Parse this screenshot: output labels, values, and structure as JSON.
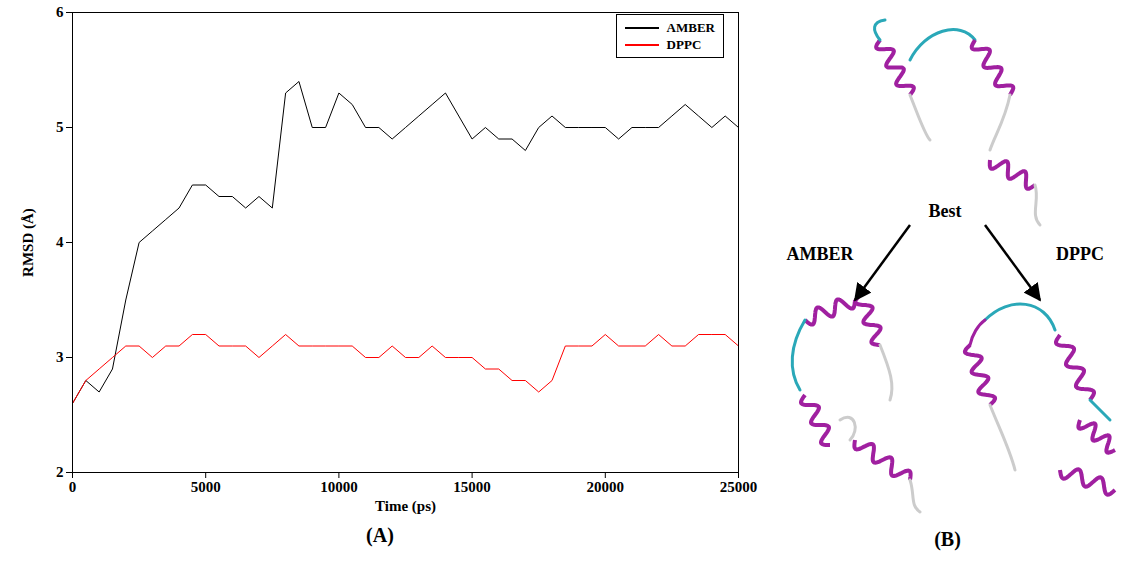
{
  "chart_data": {
    "type": "line",
    "xlabel": "Time (ps)",
    "ylabel": "RMSD (Å)",
    "x": [
      0,
      500,
      1000,
      1500,
      2000,
      2500,
      3000,
      3500,
      4000,
      4500,
      5000,
      5500,
      6000,
      6500,
      7000,
      7500,
      8000,
      8500,
      9000,
      9500,
      10000,
      10500,
      11000,
      11500,
      12000,
      12500,
      13000,
      13500,
      14000,
      14500,
      15000,
      15500,
      16000,
      16500,
      17000,
      17500,
      18000,
      18500,
      19000,
      19500,
      20000,
      20500,
      21000,
      21500,
      22000,
      22500,
      23000,
      23500,
      24000,
      24500,
      25000
    ],
    "series": [
      {
        "name": "AMBER",
        "color": "#000000",
        "values": [
          2.6,
          2.8,
          2.7,
          2.9,
          3.5,
          4.0,
          4.1,
          4.2,
          4.3,
          4.5,
          4.5,
          4.4,
          4.4,
          4.3,
          4.4,
          4.3,
          5.3,
          5.4,
          5.0,
          5.0,
          5.3,
          5.2,
          5.0,
          5.0,
          4.9,
          5.0,
          5.1,
          5.2,
          5.3,
          5.1,
          4.9,
          5.0,
          4.9,
          4.9,
          4.8,
          5.0,
          5.1,
          5.0,
          5.0,
          5.0,
          5.0,
          4.9,
          5.0,
          5.0,
          5.0,
          5.1,
          5.2,
          5.1,
          5.0,
          5.1,
          5.0
        ]
      },
      {
        "name": "DPPC",
        "color": "#ff0000",
        "values": [
          2.6,
          2.8,
          2.9,
          3.0,
          3.1,
          3.1,
          3.0,
          3.1,
          3.1,
          3.2,
          3.2,
          3.1,
          3.1,
          3.1,
          3.0,
          3.1,
          3.2,
          3.1,
          3.1,
          3.1,
          3.1,
          3.1,
          3.0,
          3.0,
          3.1,
          3.0,
          3.0,
          3.1,
          3.0,
          3.0,
          3.0,
          2.9,
          2.9,
          2.8,
          2.8,
          2.7,
          2.8,
          3.1,
          3.1,
          3.1,
          3.2,
          3.1,
          3.1,
          3.1,
          3.2,
          3.1,
          3.1,
          3.2,
          3.2,
          3.2,
          3.1
        ]
      }
    ],
    "xlim": [
      0,
      25000
    ],
    "xticks": [
      0,
      5000,
      10000,
      15000,
      20000,
      25000
    ],
    "ylim": [
      2,
      6
    ],
    "yticks": [
      2,
      3,
      4,
      5,
      6
    ],
    "legend": "top-right"
  },
  "panel_labels": [
    "(A)",
    "(B)"
  ],
  "diagram": {
    "nodes": [
      {
        "label": "Best"
      },
      {
        "label": "AMBER"
      },
      {
        "label": "DPPC"
      }
    ]
  }
}
